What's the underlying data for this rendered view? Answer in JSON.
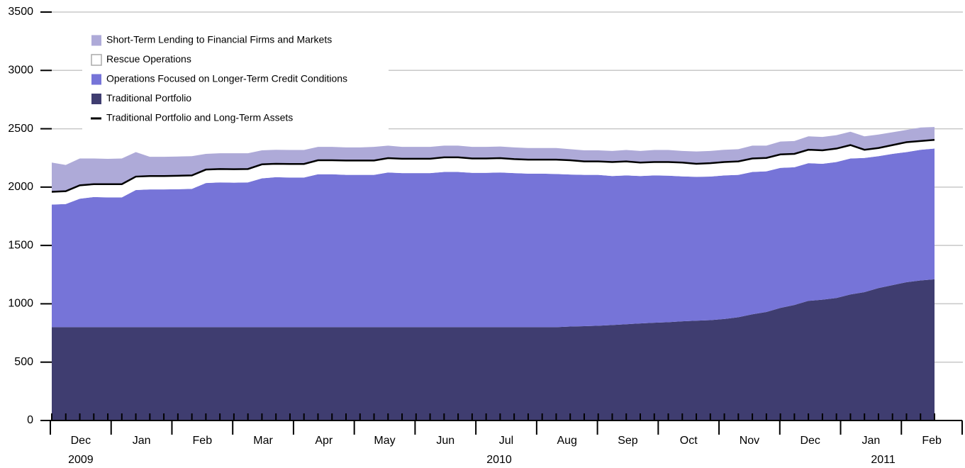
{
  "chart_data": {
    "type": "area",
    "stacked": true,
    "ylim": [
      0,
      3500
    ],
    "yticks": [
      0,
      500,
      1000,
      1500,
      2000,
      2500,
      3000,
      3500
    ],
    "grid": true,
    "months": [
      "Dec",
      "Jan",
      "Feb",
      "Mar",
      "Apr",
      "May",
      "Jun",
      "Jul",
      "Aug",
      "Sep",
      "Oct",
      "Nov",
      "Dec",
      "Jan",
      "Feb"
    ],
    "years": [
      "2009",
      "2010",
      "2011"
    ],
    "legend": "upper left",
    "series": [
      {
        "name": "Short-Term Lending to Financial Firms and Markets",
        "kind": "area",
        "color": "#aeaad8",
        "values": [
          250,
          225,
          230,
          220,
          217,
          220,
          210,
          165,
          165,
          165,
          165,
          135,
          135,
          137,
          135,
          120,
          120,
          120,
          120,
          115,
          115,
          112,
          112,
          117,
          107,
          102,
          102,
          102,
          100,
          100,
          100,
          100,
          100,
          100,
          100,
          100,
          100,
          95,
          95,
          95,
          95,
          98,
          100,
          103,
          103,
          100,
          105,
          105,
          105,
          105,
          110,
          105,
          110,
          110,
          115,
          115,
          115,
          115,
          115,
          115,
          110,
          105,
          115,
          110
        ]
      },
      {
        "name": "Rescue Operations",
        "kind": "area",
        "color": "#ffffff",
        "values": [
          110,
          110,
          115,
          110,
          113,
          113,
          115,
          115,
          115,
          115,
          115,
          115,
          115,
          115,
          115,
          120,
          115,
          116,
          116,
          120,
          120,
          123,
          123,
          123,
          123,
          123,
          123,
          123,
          125,
          125,
          123,
          123,
          123,
          120,
          120,
          120,
          123,
          122,
          115,
          115,
          120,
          120,
          115,
          115,
          117,
          118,
          112,
          115,
          115,
          115,
          115,
          115,
          115,
          115,
          115,
          115,
          115,
          115,
          70,
          70,
          75,
          85,
          75,
          75
        ]
      },
      {
        "name": "Operations Focused on Longer-Term Credit Conditions",
        "kind": "area",
        "color": "#7674d8",
        "values": [
          1050,
          1055,
          1100,
          1115,
          1112,
          1112,
          1175,
          1180,
          1180,
          1182,
          1185,
          1235,
          1240,
          1238,
          1240,
          1275,
          1285,
          1282,
          1282,
          1310,
          1310,
          1305,
          1305,
          1305,
          1325,
          1320,
          1320,
          1320,
          1330,
          1330,
          1322,
          1322,
          1325,
          1320,
          1315,
          1315,
          1312,
          1303,
          1297,
          1293,
          1277,
          1275,
          1263,
          1262,
          1256,
          1242,
          1233,
          1230,
          1230,
          1220,
          1220,
          1205,
          1200,
          1180,
          1180,
          1165,
          1165,
          1165,
          1150,
          1130,
          1125,
          1115,
          1120,
          1120
        ]
      },
      {
        "name": "Traditional Portfolio",
        "kind": "area",
        "color": "#3f3d70",
        "values": [
          800,
          800,
          800,
          800,
          800,
          800,
          800,
          800,
          800,
          800,
          800,
          800,
          800,
          800,
          800,
          800,
          800,
          800,
          800,
          800,
          800,
          800,
          800,
          800,
          800,
          800,
          800,
          800,
          800,
          800,
          800,
          800,
          800,
          800,
          800,
          800,
          800,
          805,
          808,
          812,
          818,
          825,
          832,
          838,
          842,
          850,
          855,
          860,
          870,
          885,
          910,
          930,
          965,
          990,
          1025,
          1035,
          1050,
          1080,
          1100,
          1135,
          1160,
          1185,
          1200,
          1210
        ]
      },
      {
        "name": "Traditional Portfolio and Long-Term Assets",
        "kind": "line",
        "color": "#000000",
        "values": [
          1960,
          1965,
          2015,
          2025,
          2025,
          2025,
          2090,
          2095,
          2095,
          2097,
          2100,
          2150,
          2155,
          2153,
          2155,
          2195,
          2200,
          2198,
          2198,
          2230,
          2230,
          2228,
          2228,
          2228,
          2248,
          2243,
          2243,
          2243,
          2255,
          2255,
          2245,
          2245,
          2248,
          2240,
          2235,
          2235,
          2235,
          2230,
          2220,
          2220,
          2215,
          2220,
          2210,
          2215,
          2215,
          2210,
          2200,
          2205,
          2215,
          2220,
          2245,
          2250,
          2280,
          2285,
          2320,
          2315,
          2330,
          2360,
          2320,
          2335,
          2360,
          2385,
          2395,
          2405
        ]
      }
    ]
  }
}
